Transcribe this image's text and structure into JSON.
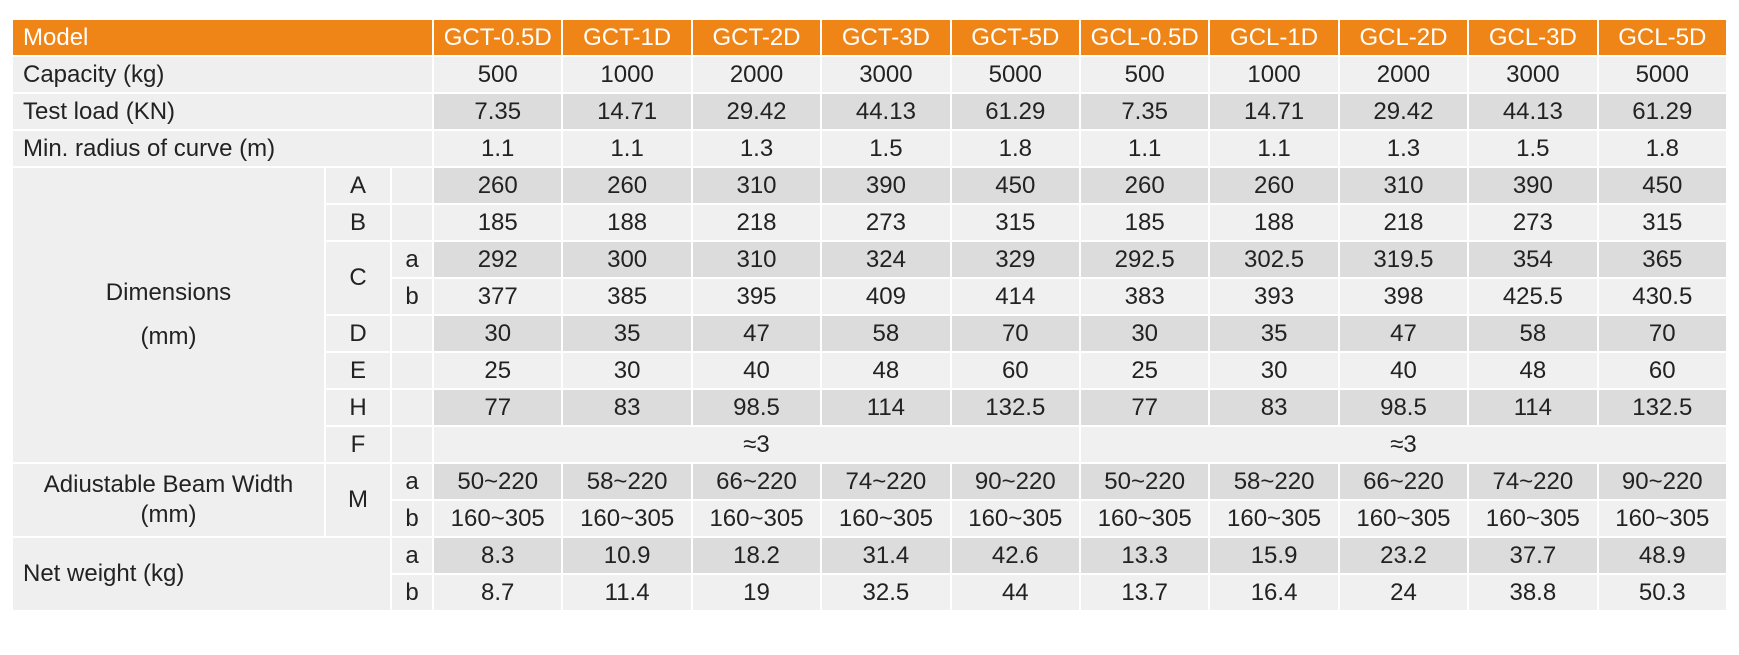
{
  "table": {
    "model_label": "Model",
    "models": [
      "GCT-0.5D",
      "GCT-1D",
      "GCT-2D",
      "GCT-3D",
      "GCT-5D",
      "GCL-0.5D",
      "GCL-1D",
      "GCL-2D",
      "GCL-3D",
      "GCL-5D"
    ],
    "capacity": {
      "label": "Capacity (kg)",
      "values": [
        500,
        1000,
        2000,
        3000,
        5000,
        500,
        1000,
        2000,
        3000,
        5000
      ]
    },
    "test_load": {
      "label": "Test load (KN)",
      "values": [
        7.35,
        14.71,
        29.42,
        44.13,
        61.29,
        7.35,
        14.71,
        29.42,
        44.13,
        61.29
      ]
    },
    "min_radius": {
      "label": "Min. radius of curve (m)",
      "values": [
        1.1,
        1.1,
        1.3,
        1.5,
        1.8,
        1.1,
        1.1,
        1.3,
        1.5,
        1.8
      ]
    },
    "dimensions": {
      "label": "Dimensions",
      "unit": "(mm)",
      "items": [
        {
          "key": "A",
          "values": [
            260,
            260,
            310,
            390,
            450,
            260,
            260,
            310,
            390,
            450
          ]
        },
        {
          "key": "B",
          "values": [
            185,
            188,
            218,
            273,
            315,
            185,
            188,
            218,
            273,
            315
          ]
        },
        {
          "key": "C",
          "subrows": [
            {
              "key": "a",
              "values": [
                292,
                300,
                310,
                324,
                329,
                292.5,
                302.5,
                319.5,
                354,
                365
              ]
            },
            {
              "key": "b",
              "values": [
                377,
                385,
                395,
                409,
                414,
                383,
                393,
                398,
                425.5,
                430.5
              ]
            }
          ]
        },
        {
          "key": "D",
          "values": [
            30,
            35,
            47,
            58,
            70,
            30,
            35,
            47,
            58,
            70
          ]
        },
        {
          "key": "E",
          "values": [
            25,
            30,
            40,
            48,
            60,
            25,
            30,
            40,
            48,
            60
          ]
        },
        {
          "key": "H",
          "values": [
            77,
            83,
            98.5,
            114,
            132.5,
            77,
            83,
            98.5,
            114,
            132.5
          ]
        },
        {
          "key": "F",
          "groups": [
            "≈3",
            "≈3"
          ]
        }
      ]
    },
    "beam_width": {
      "label": "Adiustable Beam Width",
      "unit": "(mm)",
      "key": "M",
      "subrows": [
        {
          "key": "a",
          "values": [
            "50~220",
            "58~220",
            "66~220",
            "74~220",
            "90~220",
            "50~220",
            "58~220",
            "66~220",
            "74~220",
            "90~220"
          ]
        },
        {
          "key": "b",
          "values": [
            "160~305",
            "160~305",
            "160~305",
            "160~305",
            "160~305",
            "160~305",
            "160~305",
            "160~305",
            "160~305",
            "160~305"
          ]
        }
      ]
    },
    "net_weight": {
      "label": "Net weight (kg)",
      "subrows": [
        {
          "key": "a",
          "values": [
            8.3,
            10.9,
            18.2,
            31.4,
            42.6,
            13.3,
            15.9,
            23.2,
            37.7,
            48.9
          ]
        },
        {
          "key": "b",
          "values": [
            8.7,
            11.4,
            19,
            32.5,
            44,
            13.7,
            16.4,
            24,
            38.8,
            50.3
          ]
        }
      ]
    }
  }
}
